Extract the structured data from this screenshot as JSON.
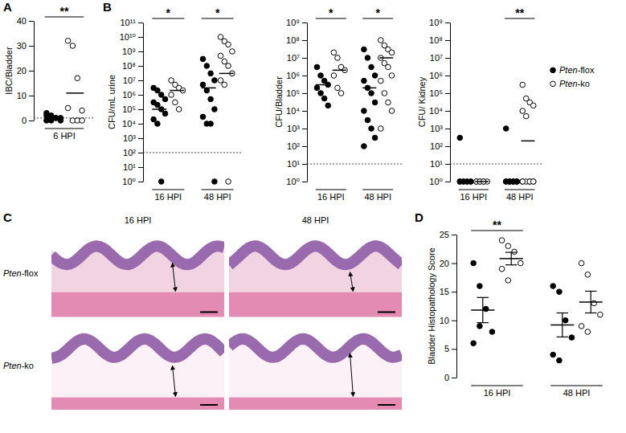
{
  "chart_data": [
    {
      "panel": "A",
      "type": "scatter",
      "y_label": "IBC/Bladder",
      "categories": [
        "6 HPI"
      ],
      "ylim": [
        0,
        40
      ],
      "yticks": [
        0,
        10,
        20,
        30,
        40
      ],
      "detection_limit": 1,
      "series": [
        {
          "marker": "filled",
          "values": [
            [
              3,
              2,
              1,
              1,
              0,
              0,
              1,
              0,
              2,
              1
            ]
          ],
          "center_lines": [
            1.1
          ]
        },
        {
          "marker": "open",
          "values": [
            [
              32,
              30,
              17,
              4,
              5,
              0,
              0,
              0
            ]
          ],
          "center_lines": [
            11
          ]
        }
      ],
      "annotations": [
        {
          "text": "**",
          "category": 0
        }
      ]
    },
    {
      "panel": "B",
      "type": "scatter",
      "y_label": "CFU/mL urine",
      "log": "y",
      "categories": [
        "16 HPI",
        "48 HPI"
      ],
      "ylim": [
        1,
        100000000000
      ],
      "yticks": [
        {
          "value": 1,
          "label": "10⁰"
        },
        {
          "value": 10,
          "label": "10¹"
        },
        {
          "value": 100,
          "label": "10²"
        },
        {
          "value": 1000,
          "label": "10³"
        },
        {
          "value": 10000,
          "label": "10⁴"
        },
        {
          "value": 100000,
          "label": "10⁵"
        },
        {
          "value": 1000000,
          "label": "10⁶"
        },
        {
          "value": 10000000,
          "label": "10⁷"
        },
        {
          "value": 100000000,
          "label": "10⁸"
        },
        {
          "value": 1000000000,
          "label": "10⁹"
        },
        {
          "value": 10000000000,
          "label": "10¹⁰"
        },
        {
          "value": 100000000000,
          "label": "10¹¹"
        }
      ],
      "detection_limit": 100,
      "series": [
        {
          "marker": "filled",
          "values": [
            [
              3000000,
              2000000,
              1000000,
              500000,
              300000,
              200000,
              100000,
              50000,
              20000,
              10000,
              1
            ],
            [
              300000000,
              100000000,
              30000000,
              10000000,
              5000000,
              2000000,
              500000,
              100000,
              30000,
              10000,
              10000,
              1
            ]
          ],
          "center_lines": [
            100000,
            3000000
          ]
        },
        {
          "marker": "open",
          "values": [
            [
              10000000,
              5000000,
              3000000,
              2000000,
              1000000,
              300000,
              100000
            ],
            [
              10000000000,
              5000000000,
              3000000000,
              1000000000,
              500000000,
              200000000,
              100000000,
              30000000,
              10000000,
              5000000,
              1
            ]
          ],
          "center_lines": [
            2000000,
            30000000
          ]
        }
      ],
      "annotations": [
        {
          "text": "*",
          "category": 0
        },
        {
          "text": "*",
          "category": 1
        }
      ]
    },
    {
      "type": "scatter",
      "y_label": "CFU/Bladder",
      "log": "y",
      "categories": [
        "16 HPI",
        "48 HPI"
      ],
      "ylim": [
        1,
        1000000000
      ],
      "yticks": [
        {
          "value": 1,
          "label": "10⁰"
        },
        {
          "value": 10,
          "label": "10¹"
        },
        {
          "value": 100,
          "label": "10²"
        },
        {
          "value": 1000,
          "label": "10³"
        },
        {
          "value": 10000,
          "label": "10⁴"
        },
        {
          "value": 100000,
          "label": "10⁵"
        },
        {
          "value": 1000000,
          "label": "10⁶"
        },
        {
          "value": 10000000,
          "label": "10⁷"
        },
        {
          "value": 100000000,
          "label": "10⁸"
        },
        {
          "value": 1000000000,
          "label": "10⁹"
        }
      ],
      "detection_limit": 10,
      "series": [
        {
          "marker": "filled",
          "values": [
            [
              3000000,
              1000000,
              500000,
              300000,
              200000,
              100000,
              50000,
              20000
            ],
            [
              30000000,
              10000000,
              3000000,
              1000000,
              500000,
              200000,
              100000,
              30000,
              10000,
              3000,
              1000,
              300,
              100
            ]
          ],
          "center_lines": [
            300000,
            200000
          ]
        },
        {
          "marker": "open",
          "values": [
            [
              20000000,
              10000000,
              3000000,
              2000000,
              1000000,
              200000,
              100000
            ],
            [
              100000000,
              50000000,
              30000000,
              20000000,
              10000000,
              5000000,
              3000000,
              1000000,
              500000,
              100000,
              30000,
              10000,
              1000
            ]
          ],
          "center_lines": [
            2000000,
            10000000
          ]
        }
      ],
      "annotations": [
        {
          "text": "*",
          "category": 0
        },
        {
          "text": "*",
          "category": 1
        }
      ]
    },
    {
      "type": "scatter",
      "y_label": "CFU/ Kidney",
      "log": "y",
      "legend": "right",
      "categories": [
        "16 HPI",
        "48 HPI"
      ],
      "ylim": [
        1,
        1000000000
      ],
      "yticks": [
        {
          "value": 1,
          "label": "10⁰"
        },
        {
          "value": 10,
          "label": "10¹"
        },
        {
          "value": 100,
          "label": "10²"
        },
        {
          "value": 1000,
          "label": "10³"
        },
        {
          "value": 10000,
          "label": "10⁴"
        },
        {
          "value": 100000,
          "label": "10⁵"
        },
        {
          "value": 1000000,
          "label": "10⁶"
        },
        {
          "value": 10000000,
          "label": "10⁷"
        },
        {
          "value": 100000000,
          "label": "10⁸"
        },
        {
          "value": 1000000000,
          "label": "10⁹"
        }
      ],
      "detection_limit": 10,
      "series": [
        {
          "name": "Pten-flox",
          "marker": "filled",
          "values": [
            [
              300,
              1,
              1,
              1,
              1,
              1,
              1,
              1,
              1
            ],
            [
              1000,
              1,
              1,
              1,
              1,
              1,
              1,
              1,
              1,
              1,
              1,
              1
            ]
          ],
          "center_lines": [
            1,
            1
          ]
        },
        {
          "name": "Pten-ko",
          "marker": "open",
          "values": [
            [
              1,
              1,
              1,
              1,
              1,
              1,
              1
            ],
            [
              300000,
              50000,
              30000,
              20000,
              10000,
              5000,
              1,
              1,
              1,
              1,
              1,
              1,
              1
            ]
          ],
          "center_lines": [
            1,
            200
          ]
        }
      ],
      "annotations": [
        {
          "text": "**",
          "category": 1
        }
      ]
    },
    {
      "panel": "C",
      "type": "image",
      "columns": [
        "16 HPI",
        "48 HPI"
      ],
      "rows": [
        "Pten-flox",
        "Pten-ko"
      ]
    },
    {
      "panel": "D",
      "type": "scatter",
      "y_label": "Bladder Histopathology Score",
      "categories": [
        "16 HPI",
        "48 HPI"
      ],
      "ylim": [
        0,
        25
      ],
      "yticks": [
        0,
        5,
        10,
        15,
        20,
        25
      ],
      "series": [
        {
          "marker": "filled",
          "values": [
            [
              20,
              16,
              12,
              8,
              6,
              9
            ],
            [
              16,
              15,
              10,
              7,
              4,
              3
            ]
          ],
          "center_lines": [
            11.8,
            9.2
          ],
          "errors": [
            2.2,
            2.1
          ]
        },
        {
          "marker": "open",
          "values": [
            [
              24,
              23,
              22,
              20,
              19,
              17
            ],
            [
              20,
              18,
              13,
              11,
              9,
              8
            ]
          ],
          "center_lines": [
            20.8,
            13.2
          ],
          "errors": [
            1.1,
            1.9
          ]
        }
      ],
      "annotations": [
        {
          "text": "**",
          "category": 0
        }
      ]
    }
  ]
}
